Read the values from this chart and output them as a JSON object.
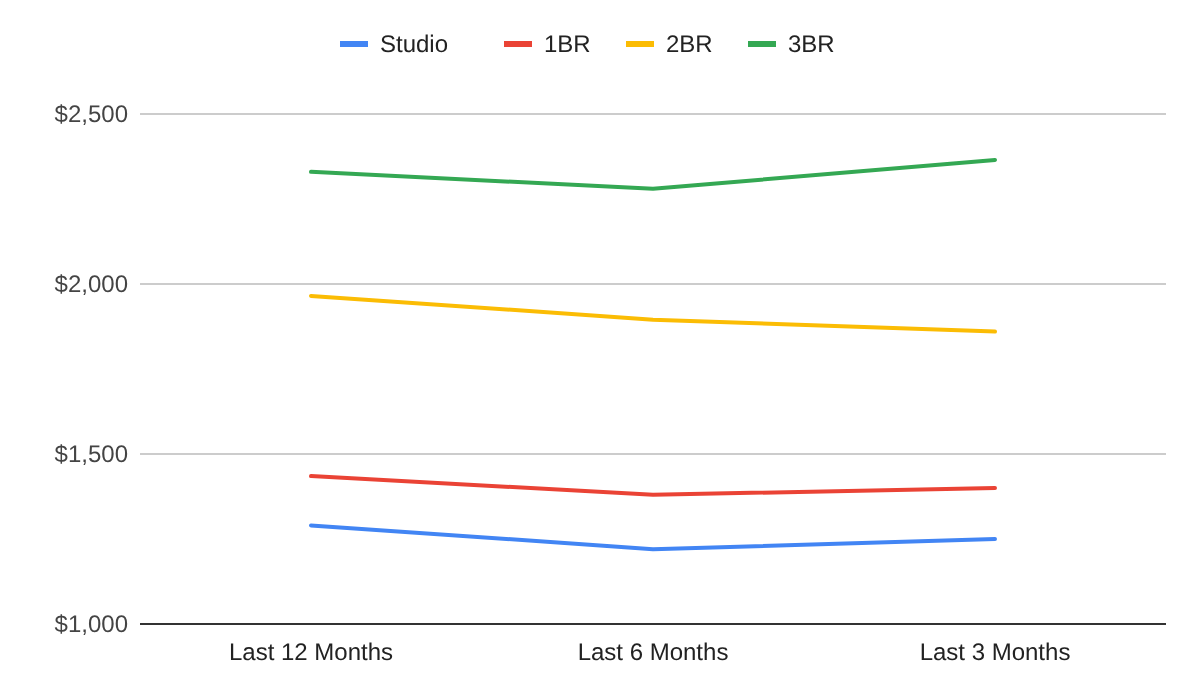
{
  "chart_data": {
    "type": "line",
    "categories": [
      "Last 12 Months",
      "Last 6 Months",
      "Last 3 Months"
    ],
    "series": [
      {
        "name": "Studio",
        "color": "#4285f4",
        "values": [
          1290,
          1220,
          1250
        ]
      },
      {
        "name": "1BR",
        "color": "#ea4335",
        "values": [
          1435,
          1380,
          1400
        ]
      },
      {
        "name": "2BR",
        "color": "#fbbc04",
        "values": [
          1965,
          1895,
          1860
        ]
      },
      {
        "name": "3BR",
        "color": "#34a853",
        "values": [
          2330,
          2280,
          2365
        ]
      }
    ],
    "ylim": [
      1000,
      2500
    ],
    "yticks": [
      {
        "value": 1000,
        "label": "$1,000"
      },
      {
        "value": 1500,
        "label": "$1,500"
      },
      {
        "value": 2000,
        "label": "$2,000"
      },
      {
        "value": 2500,
        "label": "$2,500"
      }
    ],
    "grid": "y",
    "legend": "top",
    "marker": "none",
    "line_style": "solid"
  }
}
